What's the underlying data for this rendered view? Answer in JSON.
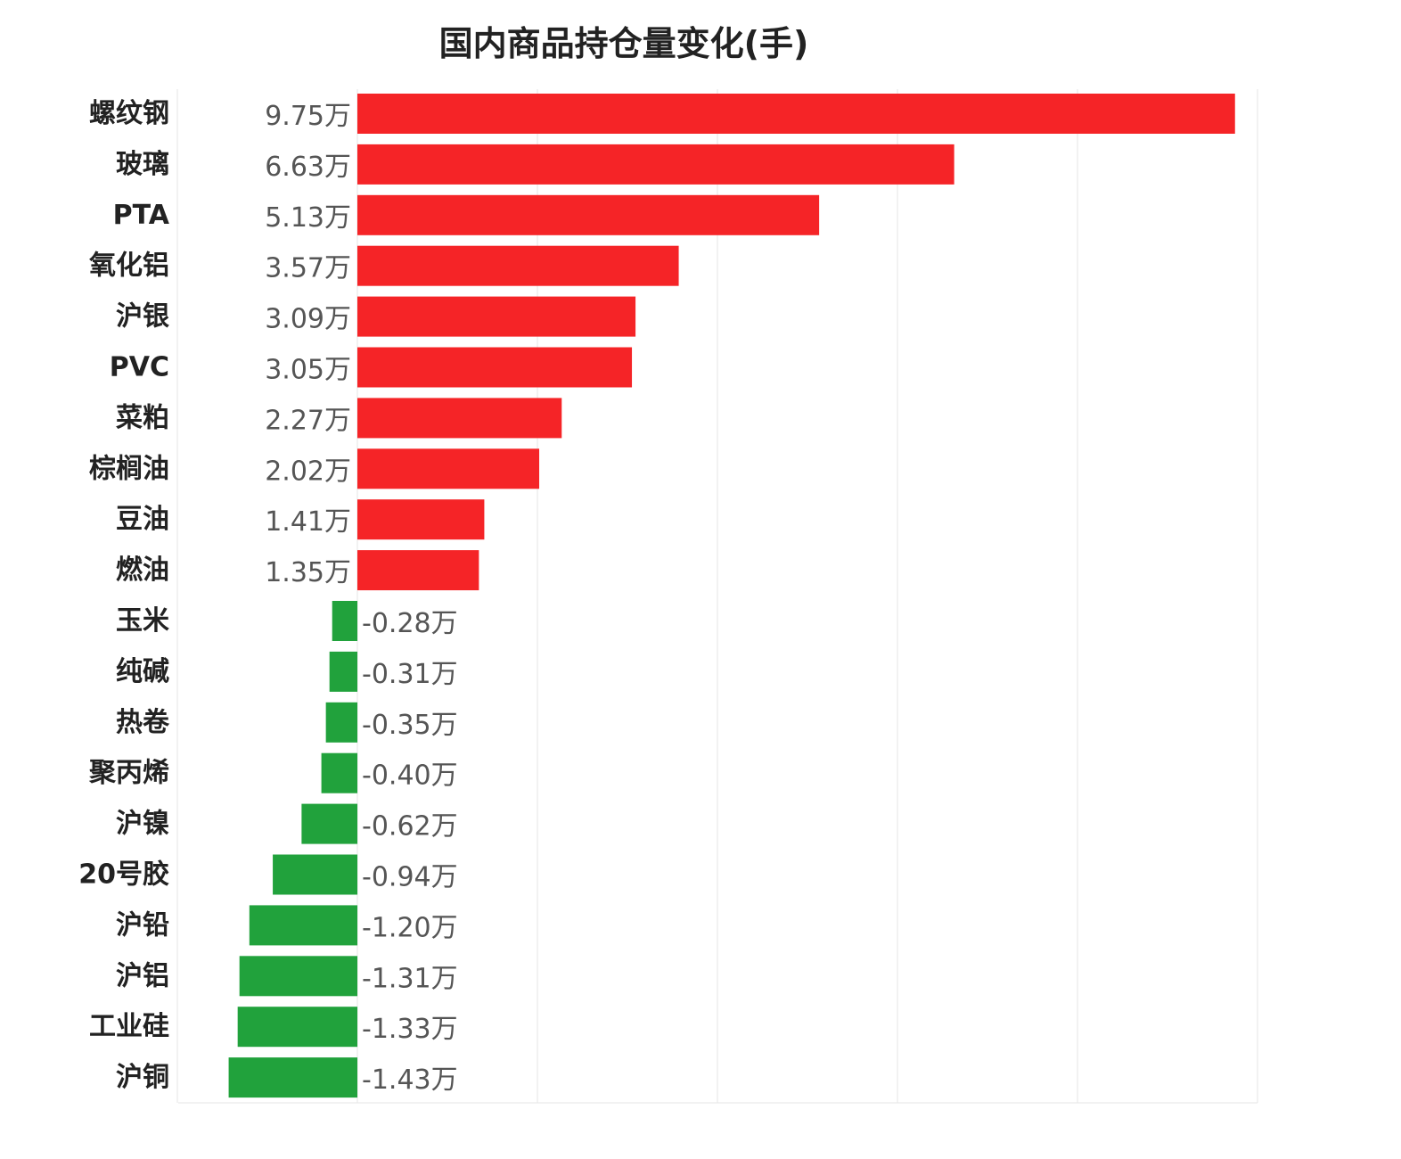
{
  "chart_data": {
    "type": "bar",
    "orientation": "horizontal",
    "title": "国内商品持仓量变化(手)",
    "xlabel": "",
    "ylabel": "",
    "unit": "万",
    "xlim": [
      -2,
      10
    ],
    "grid": true,
    "colors": {
      "positive": "#f52427",
      "negative": "#21a23c"
    },
    "categories": [
      "螺纹钢",
      "玻璃",
      "PTA",
      "氧化铝",
      "沪银",
      "PVC",
      "菜粕",
      "棕榈油",
      "豆油",
      "燃油",
      "玉米",
      "纯碱",
      "热卷",
      "聚丙烯",
      "沪镍",
      "20号胶",
      "沪铅",
      "沪铝",
      "工业硅",
      "沪铜"
    ],
    "values": [
      9.75,
      6.63,
      5.13,
      3.57,
      3.09,
      3.05,
      2.27,
      2.02,
      1.41,
      1.35,
      -0.28,
      -0.31,
      -0.35,
      -0.4,
      -0.62,
      -0.94,
      -1.2,
      -1.31,
      -1.33,
      -1.43
    ],
    "value_labels": [
      "9.75万",
      "6.63万",
      "5.13万",
      "3.57万",
      "3.09万",
      "3.05万",
      "2.27万",
      "2.02万",
      "1.41万",
      "1.35万",
      "-0.28万",
      "-0.31万",
      "-0.35万",
      "-0.40万",
      "-0.62万",
      "-0.94万",
      "-1.20万",
      "-1.31万",
      "-1.33万",
      "-1.43万"
    ]
  }
}
